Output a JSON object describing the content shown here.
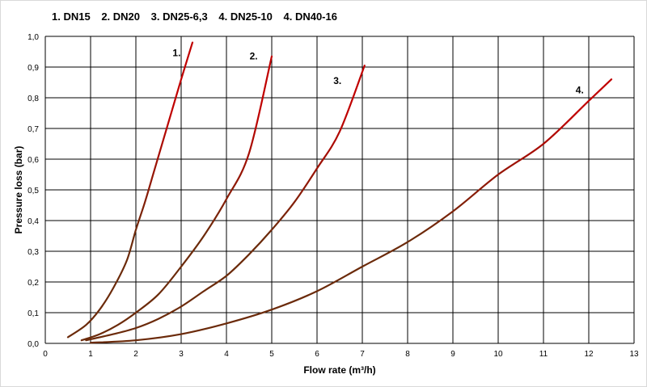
{
  "legend": [
    {
      "label": "1. DN15"
    },
    {
      "label": "2. DN20"
    },
    {
      "label": "3. DN25-6,3"
    },
    {
      "label": "4. DN25-10"
    },
    {
      "label": "4. DN40-16"
    }
  ],
  "chart_data": {
    "type": "line",
    "title": "",
    "xlabel": "Flow rate (m³/h)",
    "ylabel": "Pressure loss (bar)",
    "xlim": [
      0,
      13
    ],
    "ylim": [
      0,
      1.0
    ],
    "x_ticks": [
      "0",
      "1",
      "2",
      "3",
      "4",
      "5",
      "6",
      "7",
      "8",
      "9",
      "10",
      "11",
      "12",
      "13"
    ],
    "y_ticks": [
      "0,0",
      "0,1",
      "0,2",
      "0,3",
      "0,4",
      "0,5",
      "0,6",
      "0,7",
      "0,8",
      "0,9",
      "1,0"
    ],
    "grid": true,
    "colors": {
      "curve_low": "#6b2a0a",
      "curve_high": "#c00000",
      "grid": "#000000"
    },
    "series": [
      {
        "label": "1.",
        "label_at": [
          2.9,
          0.935
        ],
        "points": [
          [
            0.5,
            0.02
          ],
          [
            0.9,
            0.06
          ],
          [
            1.2,
            0.11
          ],
          [
            1.5,
            0.18
          ],
          [
            1.8,
            0.27
          ],
          [
            2.0,
            0.37
          ],
          [
            2.2,
            0.46
          ],
          [
            2.4,
            0.56
          ],
          [
            2.6,
            0.66
          ],
          [
            2.8,
            0.76
          ],
          [
            3.0,
            0.86
          ],
          [
            3.25,
            0.98
          ]
        ]
      },
      {
        "label": "2.",
        "label_at": [
          4.6,
          0.925
        ],
        "points": [
          [
            0.8,
            0.01
          ],
          [
            1.2,
            0.03
          ],
          [
            1.6,
            0.06
          ],
          [
            2.0,
            0.1
          ],
          [
            2.5,
            0.16
          ],
          [
            3.0,
            0.25
          ],
          [
            3.5,
            0.35
          ],
          [
            4.0,
            0.47
          ],
          [
            4.5,
            0.62
          ],
          [
            5.0,
            0.935
          ]
        ]
      },
      {
        "label": "3.",
        "label_at": [
          6.45,
          0.845
        ],
        "points": [
          [
            0.9,
            0.01
          ],
          [
            1.5,
            0.03
          ],
          [
            2.0,
            0.05
          ],
          [
            2.5,
            0.08
          ],
          [
            3.0,
            0.12
          ],
          [
            3.5,
            0.17
          ],
          [
            4.0,
            0.22
          ],
          [
            4.5,
            0.29
          ],
          [
            5.0,
            0.37
          ],
          [
            5.5,
            0.46
          ],
          [
            6.0,
            0.57
          ],
          [
            6.5,
            0.69
          ],
          [
            7.05,
            0.905
          ]
        ]
      },
      {
        "label": "4.",
        "label_at": [
          11.8,
          0.815
        ],
        "points": [
          [
            1.0,
            0.002
          ],
          [
            2.0,
            0.01
          ],
          [
            3.0,
            0.03
          ],
          [
            4.0,
            0.065
          ],
          [
            5.0,
            0.11
          ],
          [
            6.0,
            0.17
          ],
          [
            7.0,
            0.25
          ],
          [
            8.0,
            0.33
          ],
          [
            9.0,
            0.43
          ],
          [
            10.0,
            0.55
          ],
          [
            11.0,
            0.65
          ],
          [
            12.0,
            0.79
          ],
          [
            12.5,
            0.86
          ]
        ]
      }
    ]
  }
}
